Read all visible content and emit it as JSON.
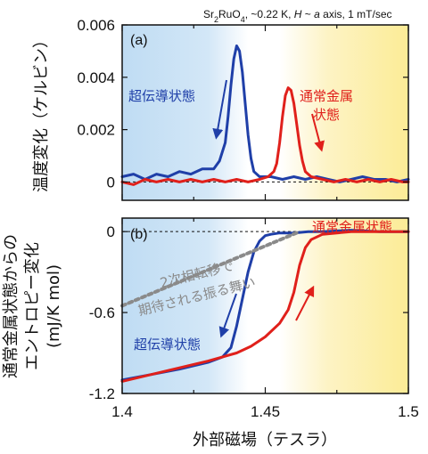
{
  "chart_data": [
    {
      "panel_label": "(a)",
      "type": "line",
      "ylabel": "温度変化（ケルビン）",
      "xlim": [
        1.4,
        1.5
      ],
      "ylim": [
        -0.0007,
        0.006
      ],
      "xticks": [
        "1.4",
        "1.45",
        "1.5"
      ],
      "yticks": [
        {
          "value": 0.006,
          "label": "0.006"
        },
        {
          "value": 0.004,
          "label": "0.004"
        },
        {
          "value": 0.002,
          "label": "0.002"
        },
        {
          "value": 0,
          "label": "0"
        }
      ],
      "conditions": "Sr₂RuO₄, ~0.22 K, H ~ a axis, 1 mT/sec",
      "annotations": {
        "superconducting": "超伝導状態",
        "normal": "通常金属\n状態"
      },
      "series": [
        {
          "color": "#1f3fa8",
          "x": [
            1.4,
            1.404,
            1.408,
            1.412,
            1.416,
            1.42,
            1.424,
            1.428,
            1.432,
            1.434,
            1.436,
            1.437,
            1.438,
            1.439,
            1.44,
            1.441,
            1.442,
            1.443,
            1.444,
            1.445,
            1.446,
            1.448,
            1.452,
            1.456,
            1.46,
            1.464,
            1.468,
            1.472,
            1.476,
            1.48,
            1.484,
            1.488,
            1.492,
            1.496,
            1.5
          ],
          "y": [
            0.0002,
            0.0003,
            0.0001,
            0.0003,
            0.0002,
            0.0004,
            0.0003,
            0.0005,
            0.0005,
            0.0008,
            0.0015,
            0.0025,
            0.0037,
            0.0047,
            0.0052,
            0.005,
            0.0042,
            0.003,
            0.0018,
            0.0009,
            0.0004,
            0.0002,
            0.0002,
            0.0001,
            0.0002,
            0.0001,
            0.0002,
            0.0001,
            0.0,
            0.0001,
            0.0002,
            0.0001,
            0.0001,
            0.0,
            0.0001
          ]
        },
        {
          "color": "#e0201b",
          "x": [
            1.4,
            1.404,
            1.408,
            1.412,
            1.416,
            1.42,
            1.424,
            1.428,
            1.432,
            1.436,
            1.44,
            1.444,
            1.448,
            1.451,
            1.453,
            1.454,
            1.455,
            1.456,
            1.457,
            1.458,
            1.459,
            1.46,
            1.461,
            1.462,
            1.463,
            1.464,
            1.466,
            1.47,
            1.474,
            1.478,
            1.482,
            1.486,
            1.49,
            1.494,
            1.498,
            1.5
          ],
          "y": [
            0.0,
            -0.0001,
            0.0001,
            0.0,
            0.0001,
            0.0,
            0.0001,
            0.0,
            0.0001,
            0.0,
            0.0001,
            0.0,
            0.0001,
            0.0002,
            0.0004,
            0.0007,
            0.0015,
            0.0025,
            0.0033,
            0.0036,
            0.0035,
            0.003,
            0.0022,
            0.0014,
            0.0008,
            0.0004,
            0.0002,
            0.0001,
            0.0,
            0.0001,
            0.0,
            0.0001,
            0.0,
            0.0001,
            0.0,
            0.0
          ]
        }
      ]
    },
    {
      "panel_label": "(b)",
      "type": "line",
      "ylabel": "通常金属状態からの\nエントロピー変化\n(mJ/K mol)",
      "xlabel": "外部磁場（テスラ）",
      "xlim": [
        1.4,
        1.5
      ],
      "ylim": [
        -1.2,
        0.1
      ],
      "xticks": [
        "1.4",
        "1.45",
        "1.5"
      ],
      "yticks": [
        {
          "value": 0,
          "label": "0"
        },
        {
          "value": -0.6,
          "label": "-0.6"
        },
        {
          "value": -1.2,
          "label": "-1.2"
        }
      ],
      "annotations": {
        "normal": "通常金属状態",
        "second_order": "2次相転移で\n期待される振る舞い",
        "superconducting": "超伝導状態"
      },
      "series": [
        {
          "color": "#1f3fa8",
          "x": [
            1.4,
            1.41,
            1.42,
            1.43,
            1.435,
            1.438,
            1.44,
            1.442,
            1.444,
            1.446,
            1.448,
            1.45,
            1.452,
            1.455,
            1.46,
            1.465,
            1.47,
            1.48,
            1.49,
            1.5
          ],
          "y": [
            -1.1,
            -1.06,
            -1.02,
            -0.97,
            -0.93,
            -0.86,
            -0.7,
            -0.5,
            -0.3,
            -0.15,
            -0.07,
            -0.03,
            -0.02,
            -0.01,
            -0.01,
            0.0,
            0.0,
            0.01,
            0.0,
            0.0
          ]
        },
        {
          "color": "#e0201b",
          "x": [
            1.4,
            1.41,
            1.42,
            1.43,
            1.44,
            1.445,
            1.45,
            1.455,
            1.458,
            1.46,
            1.462,
            1.464,
            1.466,
            1.47,
            1.475,
            1.48,
            1.49,
            1.5
          ],
          "y": [
            -1.11,
            -1.06,
            -1.01,
            -0.96,
            -0.9,
            -0.85,
            -0.78,
            -0.68,
            -0.58,
            -0.45,
            -0.25,
            -0.12,
            -0.06,
            -0.02,
            -0.01,
            0.0,
            0.0,
            0.0
          ]
        },
        {
          "color": "#8a8a8a",
          "style": "dotted",
          "x": [
            1.4,
            1.462
          ],
          "y": [
            -0.55,
            0.0
          ]
        }
      ]
    }
  ]
}
